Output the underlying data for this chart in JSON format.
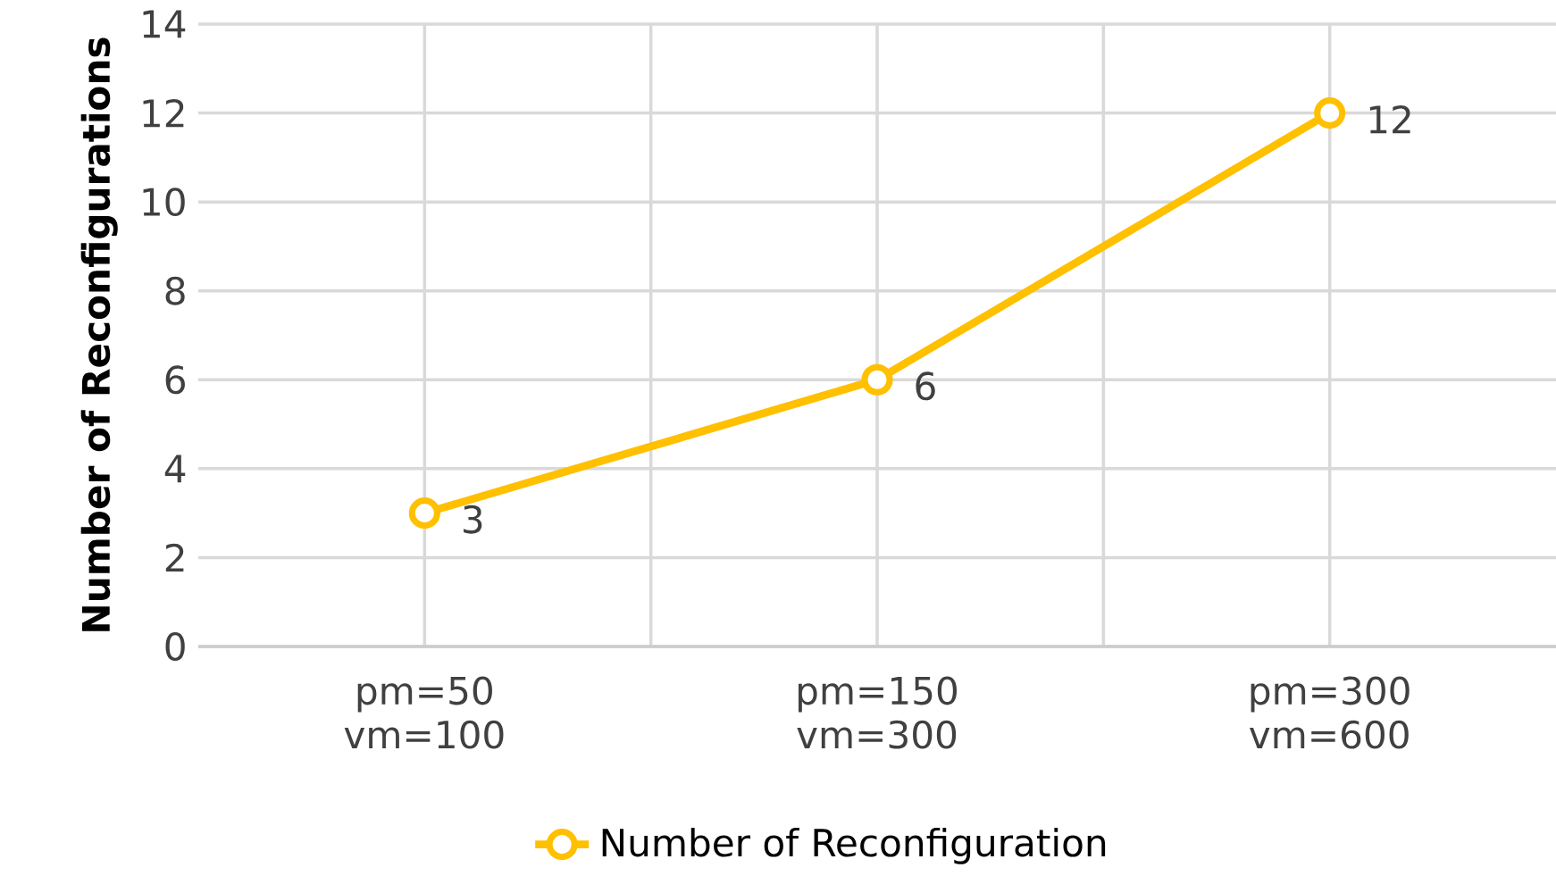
{
  "chart_data": {
    "type": "line",
    "ylabel": "Number of Reconfigurations",
    "categories": [
      "pm=50 vm=100",
      "pm=150 vm=300",
      "pm=300 vm=600"
    ],
    "series": [
      {
        "name": "Number of Reconfiguration",
        "color": "#ffc000",
        "values": [
          3,
          6,
          12
        ]
      }
    ],
    "ylim": [
      0,
      14
    ],
    "yticks": [
      0,
      2,
      4,
      6,
      8,
      10,
      12,
      14
    ],
    "grid": true,
    "legend": "bottom",
    "marker": "circle",
    "line_style": "solid",
    "data_labels": true
  }
}
